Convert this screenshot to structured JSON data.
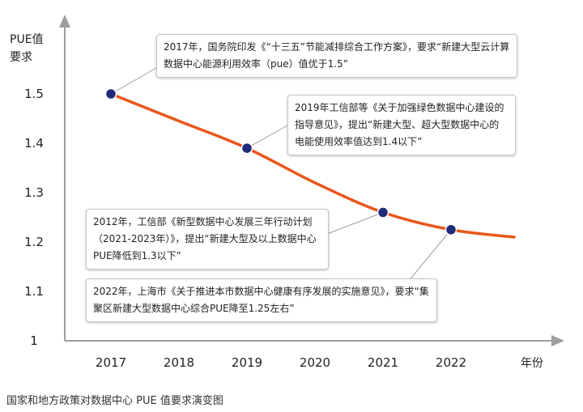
{
  "y_axis_title": "PUE值要求",
  "x_axis_title": "年份",
  "caption": "国家和地方政策对数据中心 PUE 值要求演变图",
  "annotations": [
    "2017年，国务院印发《“十三五”节能减排综合工作方案》，要求“新建大型云计算数据中心能源利用效率（pue）值优于1.5”",
    "2019年工信部等《关于加强绿色数据中心建设的指导意见》，提出“新建大型、超大型数据中心的电能使用效率值达到1.4以下”",
    "2012年，工信部《新型数据中心发展三年行动计划（2021-2023年）》，提出“新建大型及以上数据中心PUE降低到1.3以下”",
    "2022年，上海市《关于推进本市数据中心健康有序发展的实施意见》，要求“集聚区新建大型数据中心综合PUE降至1.25左右”"
  ],
  "chart_data": {
    "type": "line",
    "title": "",
    "xlabel": "年份",
    "ylabel": "PUE值要求",
    "categories": [
      "2017",
      "2018",
      "2019",
      "2020",
      "2021",
      "2022"
    ],
    "y_ticks": [
      "1",
      "1.1",
      "1.2",
      "1.3",
      "1.4",
      "1.5"
    ],
    "ylim": [
      1,
      1.6
    ],
    "series": [
      {
        "values": [
          1.5,
          1.445,
          1.39,
          1.32,
          1.26,
          1.225
        ],
        "marked_points": [
          {
            "x": "2017",
            "y": 1.5
          },
          {
            "x": "2019",
            "y": 1.39
          },
          {
            "x": "2021",
            "y": 1.26
          },
          {
            "x": "2022",
            "y": 1.225
          }
        ],
        "curve_end_y": 1.21
      }
    ],
    "grid": false,
    "colors": {
      "line": "#e8581c",
      "marker": "#1f2a7a",
      "axis": "#9e9e9e",
      "leader": "#9e9e9e"
    }
  }
}
